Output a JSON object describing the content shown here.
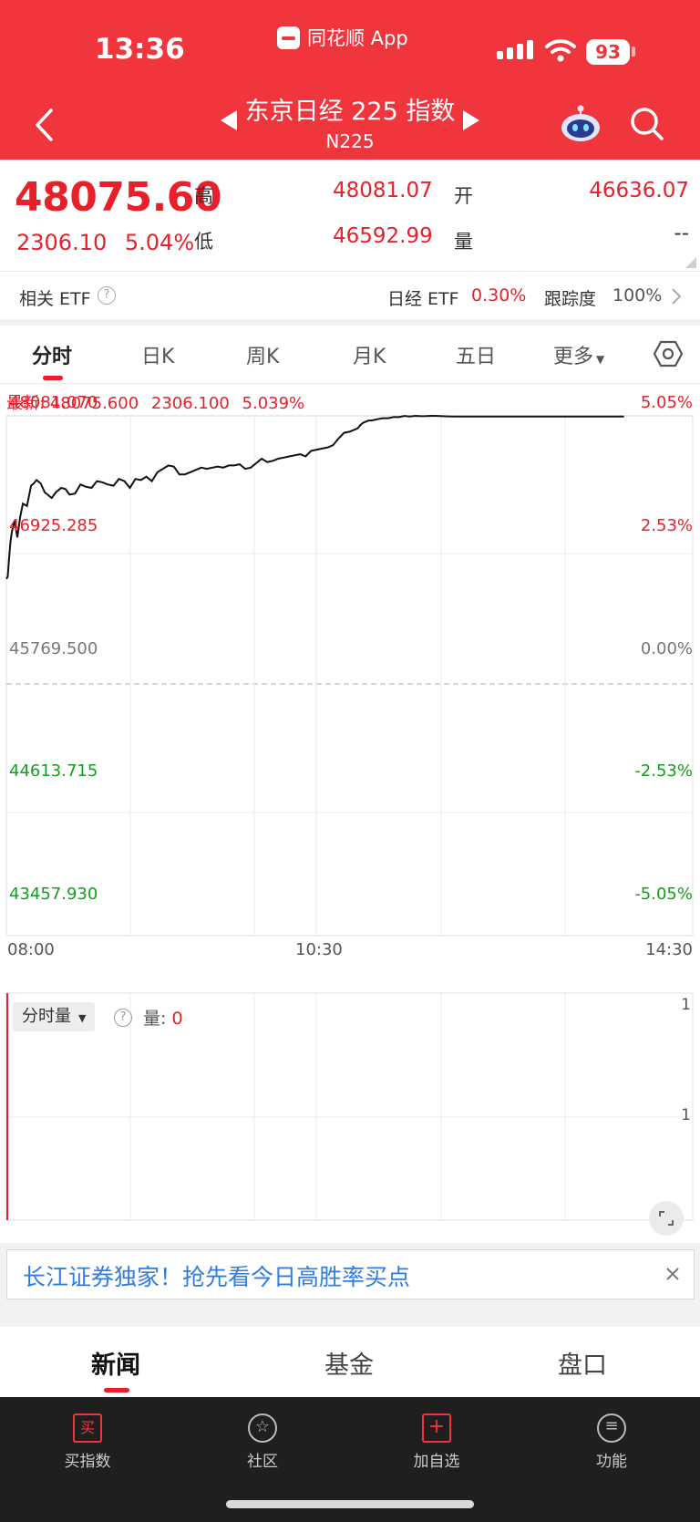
{
  "status": {
    "time": "13:36",
    "app_name": "同花顺 App",
    "battery": "93"
  },
  "header": {
    "title": "东京日经 225 指数",
    "subtitle": "N225"
  },
  "quote": {
    "price": "48075.60",
    "change": "2306.10",
    "change_pct": "5.04%",
    "high_label": "高",
    "high": "48081.07",
    "low_label": "低",
    "low": "46592.99",
    "open_label": "开",
    "open": "46636.07",
    "volume_label": "量",
    "volume": "--"
  },
  "etf_bar": {
    "label": "相关 ETF",
    "etf_name": "日经 ETF",
    "etf_change": "0.30%",
    "tracking_label": "跟踪度",
    "tracking_value": "100%"
  },
  "chart_tabs": [
    "分时",
    "日K",
    "周K",
    "月K",
    "五日",
    "更多"
  ],
  "latest": {
    "label": "最新:",
    "price": "48075.600",
    "change": "2306.100",
    "pct": "5.039%"
  },
  "chart_data": {
    "type": "line",
    "price_axis": [
      "48081.070",
      "46925.285",
      "45769.500",
      "44613.715",
      "43457.930"
    ],
    "pct_axis": [
      "5.05%",
      "2.53%",
      "0.00%",
      "-2.53%",
      "-5.05%"
    ],
    "time_labels": [
      "08:00",
      "10:30",
      "14:30"
    ],
    "ylim": [
      43457.93,
      48081.07
    ],
    "prev_close": 45769.5,
    "x": [
      0,
      1,
      2,
      3,
      4,
      6,
      8,
      10,
      12,
      15,
      18,
      20,
      22,
      25,
      28,
      30,
      33,
      36,
      40,
      43,
      46,
      50,
      54,
      58,
      62,
      66,
      70,
      74,
      78,
      82,
      86,
      90,
      94,
      98,
      102,
      106,
      110,
      114,
      118,
      122,
      126,
      130,
      134,
      138,
      142,
      146,
      150,
      154,
      158,
      162,
      166,
      170,
      174,
      178,
      182,
      186,
      190,
      194,
      198,
      202,
      206,
      210,
      214,
      218,
      222,
      226,
      230,
      234,
      238,
      242,
      246,
      250,
      254,
      256,
      258,
      260,
      262,
      264,
      266,
      270,
      274,
      278,
      282,
      286,
      290,
      294,
      298,
      302,
      306,
      310,
      314,
      318,
      322,
      326,
      330,
      334,
      338,
      342,
      346,
      350,
      354,
      358,
      362,
      366,
      370,
      374,
      378,
      382,
      386,
      390,
      394,
      398,
      402,
      406,
      410,
      414,
      418,
      422,
      426,
      430,
      432,
      434,
      436,
      438,
      440,
      442,
      444,
      446,
      448,
      450
    ],
    "values": [
      46630,
      46650,
      46820,
      46960,
      47050,
      47150,
      47000,
      47180,
      47300,
      47280,
      47460,
      47480,
      47510,
      47480,
      47400,
      47380,
      47350,
      47400,
      47440,
      47430,
      47380,
      47390,
      47470,
      47450,
      47440,
      47500,
      47490,
      47470,
      47460,
      47520,
      47500,
      47440,
      47520,
      47510,
      47540,
      47500,
      47580,
      47610,
      47640,
      47630,
      47560,
      47560,
      47580,
      47600,
      47620,
      47610,
      47620,
      47630,
      47620,
      47640,
      47640,
      47650,
      47610,
      47620,
      47660,
      47700,
      47670,
      47680,
      47700,
      47710,
      47720,
      47730,
      47740,
      47720,
      47770,
      47780,
      47790,
      47800,
      47820,
      47880,
      47930,
      47940,
      47960,
      47970,
      48000,
      48020,
      48030,
      48040,
      48040,
      48050,
      48060,
      48060,
      48070,
      48070,
      48080,
      48075,
      48081,
      48078,
      48079,
      48081,
      48080,
      48078,
      48076,
      48075,
      48075,
      48075,
      48075,
      48075,
      48075,
      48075,
      48075,
      48075,
      48075,
      48075,
      48075,
      48075,
      48075,
      48075,
      48075,
      48075,
      48075,
      48075,
      48075,
      48075,
      48075,
      48075,
      48075,
      48075,
      48075,
      48075,
      48075,
      48075,
      48075,
      48075,
      48075,
      48075,
      48075,
      48075,
      48075,
      48075
    ]
  },
  "volume_panel": {
    "selector": "分时量",
    "label": "量:",
    "value": "0",
    "axis_top": "1",
    "axis_mid": "1"
  },
  "banner": {
    "text": "长江证券独家！抢先看今日高胜率买点"
  },
  "bottom_tabs": [
    "新闻",
    "基金",
    "盘口"
  ],
  "toolbar": [
    {
      "label": "买指数",
      "icon": "buy-icon"
    },
    {
      "label": "社区",
      "icon": "community-icon"
    },
    {
      "label": "加自选",
      "icon": "add-favorite-icon"
    },
    {
      "label": "功能",
      "icon": "menu-icon"
    }
  ]
}
